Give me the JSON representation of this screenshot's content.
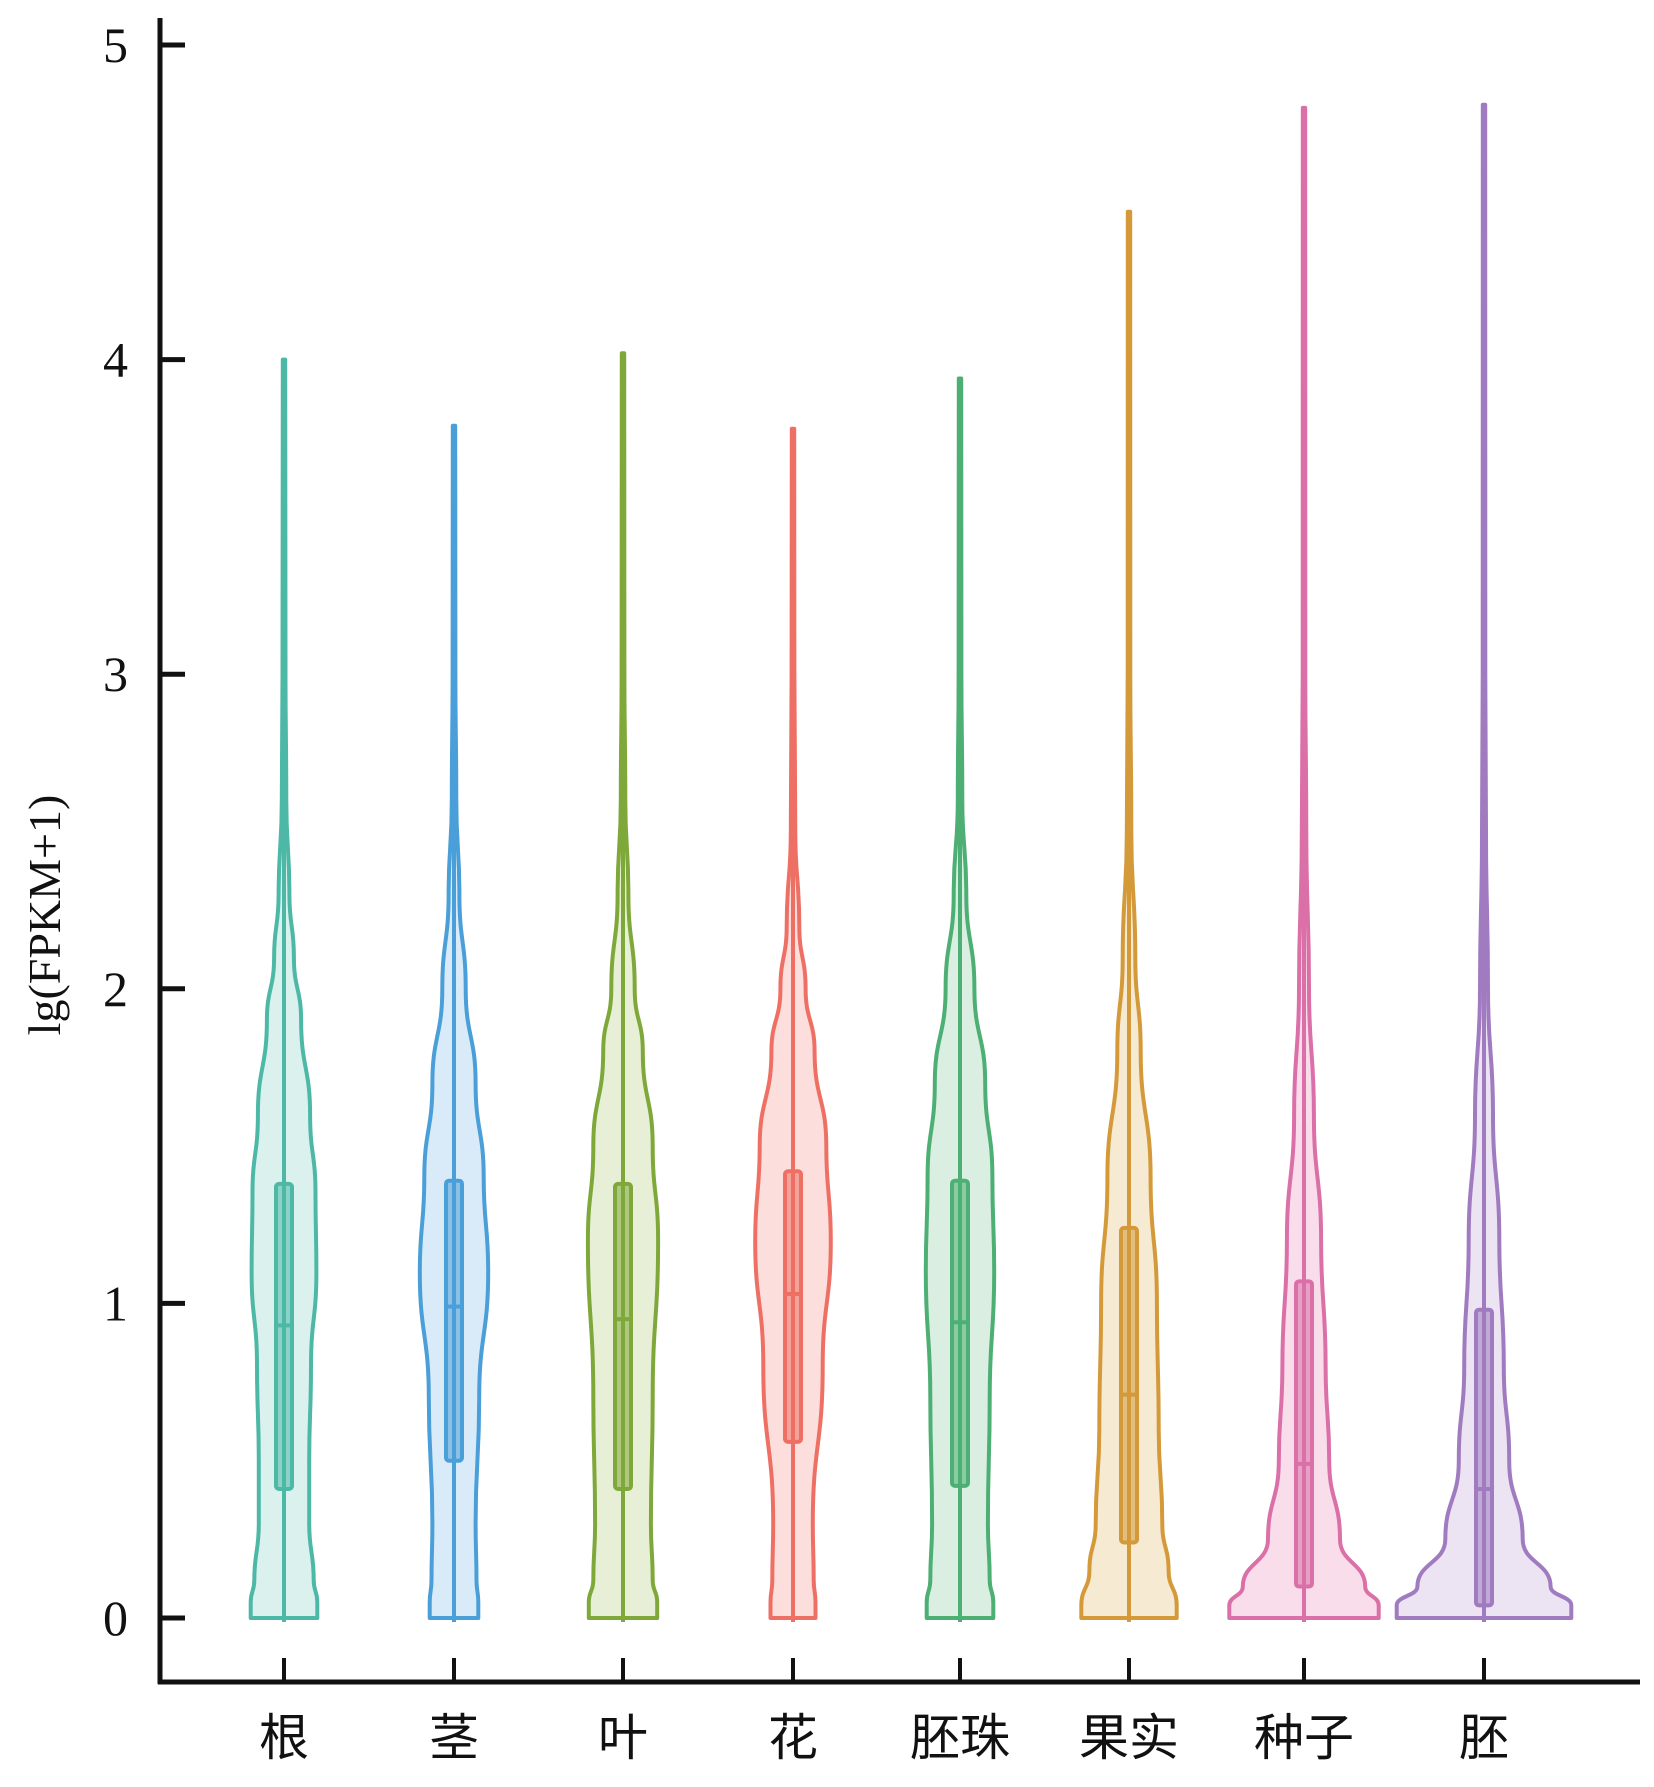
{
  "chart_data": {
    "type": "violin",
    "title": "",
    "xlabel": "",
    "ylabel": "lg(FPKM+1)",
    "ylim": [
      0,
      5
    ],
    "yticks": [
      0,
      1,
      2,
      3,
      4,
      5
    ],
    "grid": false,
    "legend": "none",
    "categories": [
      "根",
      "茎",
      "叶",
      "花",
      "胚珠",
      "果实",
      "种子",
      "胚"
    ],
    "series": [
      {
        "name": "根",
        "color": "#4DB8A6",
        "fill": "#D5EEEA",
        "min": 0,
        "q1": 0.41,
        "median": 0.93,
        "q3": 1.38,
        "max": 4.0,
        "density": [
          [
            0,
            0.37
          ],
          [
            0.05,
            0.37
          ],
          [
            0.12,
            0.33
          ],
          [
            0.3,
            0.28
          ],
          [
            0.5,
            0.28
          ],
          [
            0.8,
            0.3
          ],
          [
            1.1,
            0.36
          ],
          [
            1.35,
            0.35
          ],
          [
            1.6,
            0.29
          ],
          [
            1.9,
            0.19
          ],
          [
            2.1,
            0.11
          ],
          [
            2.3,
            0.06
          ],
          [
            2.6,
            0.025
          ],
          [
            3.0,
            0.017
          ],
          [
            4.0,
            0.011
          ]
        ]
      },
      {
        "name": "茎",
        "color": "#4A9FD8",
        "fill": "#D2E8F7",
        "min": 0,
        "q1": 0.5,
        "median": 0.99,
        "q3": 1.39,
        "max": 3.79,
        "density": [
          [
            0,
            0.27
          ],
          [
            0.05,
            0.27
          ],
          [
            0.12,
            0.25
          ],
          [
            0.3,
            0.24
          ],
          [
            0.7,
            0.28
          ],
          [
            1.1,
            0.38
          ],
          [
            1.4,
            0.33
          ],
          [
            1.7,
            0.24
          ],
          [
            2.0,
            0.13
          ],
          [
            2.3,
            0.06
          ],
          [
            2.6,
            0.025
          ],
          [
            3.0,
            0.015
          ],
          [
            3.79,
            0.011
          ]
        ]
      },
      {
        "name": "叶",
        "color": "#7FA83A",
        "fill": "#E3EDCF",
        "min": 0,
        "q1": 0.41,
        "median": 0.95,
        "q3": 1.38,
        "max": 4.02,
        "density": [
          [
            0,
            0.38
          ],
          [
            0.05,
            0.38
          ],
          [
            0.12,
            0.33
          ],
          [
            0.3,
            0.31
          ],
          [
            0.7,
            0.33
          ],
          [
            1.2,
            0.39
          ],
          [
            1.5,
            0.33
          ],
          [
            1.8,
            0.22
          ],
          [
            2.0,
            0.13
          ],
          [
            2.3,
            0.06
          ],
          [
            2.6,
            0.025
          ],
          [
            3.0,
            0.015
          ],
          [
            4.02,
            0.011
          ]
        ]
      },
      {
        "name": "花",
        "color": "#EE7065",
        "fill": "#FBD9D6",
        "min": 0,
        "q1": 0.56,
        "median": 1.03,
        "q3": 1.42,
        "max": 3.78,
        "density": [
          [
            0,
            0.25
          ],
          [
            0.05,
            0.25
          ],
          [
            0.12,
            0.23
          ],
          [
            0.3,
            0.22
          ],
          [
            0.8,
            0.33
          ],
          [
            1.2,
            0.42
          ],
          [
            1.5,
            0.37
          ],
          [
            1.8,
            0.24
          ],
          [
            2.0,
            0.14
          ],
          [
            2.2,
            0.07
          ],
          [
            2.5,
            0.025
          ],
          [
            3.0,
            0.015
          ],
          [
            3.78,
            0.011
          ]
        ]
      },
      {
        "name": "胚珠",
        "color": "#4DAF74",
        "fill": "#D3ECDC",
        "min": 0,
        "q1": 0.42,
        "median": 0.94,
        "q3": 1.39,
        "max": 3.94,
        "density": [
          [
            0,
            0.37
          ],
          [
            0.05,
            0.37
          ],
          [
            0.12,
            0.33
          ],
          [
            0.3,
            0.31
          ],
          [
            0.7,
            0.33
          ],
          [
            1.1,
            0.38
          ],
          [
            1.4,
            0.36
          ],
          [
            1.7,
            0.28
          ],
          [
            2.0,
            0.16
          ],
          [
            2.3,
            0.07
          ],
          [
            2.6,
            0.025
          ],
          [
            3.0,
            0.015
          ],
          [
            3.94,
            0.011
          ]
        ]
      },
      {
        "name": "果实",
        "color": "#D49A3A",
        "fill": "#F6E6CB",
        "min": 0,
        "q1": 0.24,
        "median": 0.71,
        "q3": 1.24,
        "max": 4.47,
        "density": [
          [
            0,
            0.53
          ],
          [
            0.04,
            0.53
          ],
          [
            0.15,
            0.44
          ],
          [
            0.3,
            0.37
          ],
          [
            0.6,
            0.33
          ],
          [
            1.0,
            0.31
          ],
          [
            1.4,
            0.24
          ],
          [
            1.8,
            0.13
          ],
          [
            2.1,
            0.07
          ],
          [
            2.5,
            0.025
          ],
          [
            3.0,
            0.015
          ],
          [
            4.47,
            0.011
          ]
        ]
      },
      {
        "name": "种子",
        "color": "#DB6FA8",
        "fill": "#F8D7E8",
        "min": 0,
        "q1": 0.1,
        "median": 0.49,
        "q3": 1.07,
        "max": 4.8,
        "density": [
          [
            0,
            0.83
          ],
          [
            0.04,
            0.83
          ],
          [
            0.1,
            0.68
          ],
          [
            0.25,
            0.4
          ],
          [
            0.5,
            0.28
          ],
          [
            0.8,
            0.24
          ],
          [
            1.2,
            0.19
          ],
          [
            1.6,
            0.11
          ],
          [
            2.0,
            0.055
          ],
          [
            2.5,
            0.025
          ],
          [
            3.0,
            0.015
          ],
          [
            4.8,
            0.011
          ]
        ]
      },
      {
        "name": "胚",
        "color": "#A07BBF",
        "fill": "#E9DEF1",
        "min": 0,
        "q1": 0.04,
        "median": 0.41,
        "q3": 0.98,
        "max": 4.81,
        "density": [
          [
            0,
            0.97
          ],
          [
            0.04,
            0.97
          ],
          [
            0.1,
            0.74
          ],
          [
            0.25,
            0.43
          ],
          [
            0.5,
            0.28
          ],
          [
            0.8,
            0.22
          ],
          [
            1.2,
            0.17
          ],
          [
            1.6,
            0.1
          ],
          [
            2.0,
            0.045
          ],
          [
            2.5,
            0.022
          ],
          [
            3.0,
            0.014
          ],
          [
            4.81,
            0.011
          ]
        ]
      }
    ]
  }
}
